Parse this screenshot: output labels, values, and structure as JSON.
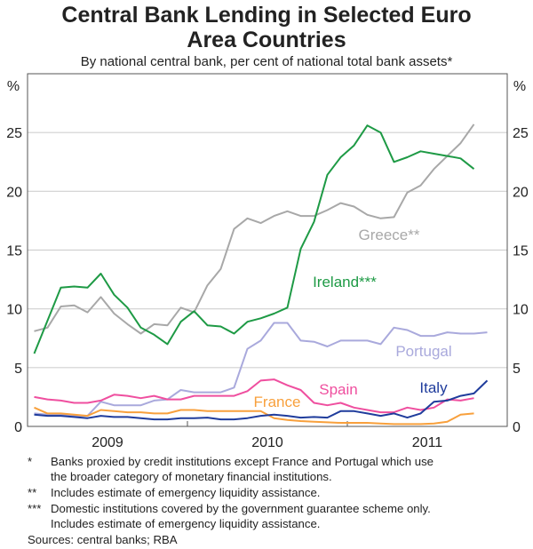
{
  "chart_data": {
    "type": "line",
    "title": "Central Bank Lending in Selected Euro Area Countries",
    "title_lines": [
      "Central Bank Lending in Selected Euro",
      "Area Countries"
    ],
    "subtitle": "By national central bank, per cent of national total bank assets*",
    "ylabel_left": "%",
    "ylabel_right": "%",
    "ylim": [
      0,
      30
    ],
    "yticks": [
      0,
      5,
      10,
      15,
      20,
      25
    ],
    "xlim": [
      "2009-01",
      "2012-01"
    ],
    "xtick_labels": [
      "2009",
      "2010",
      "2011"
    ],
    "x_start": "2009-01",
    "x_frequency": "monthly",
    "grid": true,
    "colors": {
      "Ireland***": "#1e9a45",
      "Greece**": "#a8a8a8",
      "Portugal": "#a9a9dc",
      "Spain": "#ef4f9f",
      "France": "#f8a03c",
      "Italy": "#1f3c9c"
    },
    "series": [
      {
        "name": "Greece**",
        "values": [
          8.1,
          8.4,
          10.2,
          10.3,
          9.7,
          11.0,
          9.6,
          8.7,
          7.9,
          8.7,
          8.6,
          10.1,
          9.7,
          12.0,
          13.4,
          16.8,
          17.7,
          17.3,
          17.9,
          18.3,
          17.9,
          17.9,
          18.4,
          19.0,
          18.7,
          18.0,
          17.7,
          17.8,
          19.9,
          20.5,
          21.9,
          23.0,
          24.1,
          25.7
        ]
      },
      {
        "name": "Ireland***",
        "values": [
          6.2,
          9.0,
          11.8,
          11.9,
          11.8,
          13.0,
          11.2,
          10.1,
          8.4,
          7.8,
          7.0,
          8.9,
          9.8,
          8.6,
          8.5,
          7.9,
          8.9,
          9.2,
          9.6,
          10.1,
          15.1,
          17.4,
          21.4,
          22.9,
          23.9,
          25.6,
          25.0,
          22.5,
          22.9,
          23.4,
          23.2,
          23.0,
          22.8,
          21.9
        ]
      },
      {
        "name": "Portugal",
        "values": [
          1.1,
          1.0,
          1.0,
          0.9,
          0.9,
          2.1,
          1.8,
          1.8,
          1.8,
          2.2,
          2.3,
          3.1,
          2.9,
          2.9,
          2.9,
          3.3,
          6.6,
          7.3,
          8.8,
          8.8,
          7.3,
          7.2,
          6.8,
          7.3,
          7.3,
          7.3,
          7.0,
          8.4,
          8.2,
          7.7,
          7.7,
          8.0,
          7.9,
          7.9,
          8.0
        ]
      },
      {
        "name": "Spain",
        "values": [
          2.5,
          2.3,
          2.2,
          2.0,
          2.0,
          2.2,
          2.7,
          2.6,
          2.4,
          2.6,
          2.3,
          2.3,
          2.6,
          2.6,
          2.6,
          2.6,
          3.0,
          3.9,
          4.0,
          3.5,
          3.1,
          2.0,
          1.8,
          2.0,
          1.6,
          1.4,
          1.2,
          1.2,
          1.6,
          1.4,
          1.6,
          2.3,
          2.2,
          2.4
        ]
      },
      {
        "name": "France",
        "values": [
          1.6,
          1.1,
          1.1,
          1.0,
          0.9,
          1.4,
          1.3,
          1.2,
          1.2,
          1.1,
          1.1,
          1.4,
          1.4,
          1.3,
          1.3,
          1.3,
          1.3,
          1.3,
          0.7,
          0.55,
          0.45,
          0.4,
          0.35,
          0.3,
          0.3,
          0.3,
          0.25,
          0.2,
          0.2,
          0.2,
          0.25,
          0.4,
          1.0,
          1.1
        ]
      },
      {
        "name": "Italy",
        "values": [
          1.0,
          0.9,
          0.9,
          0.8,
          0.7,
          0.9,
          0.8,
          0.8,
          0.7,
          0.6,
          0.6,
          0.7,
          0.7,
          0.75,
          0.6,
          0.6,
          0.7,
          0.9,
          1.0,
          0.9,
          0.75,
          0.8,
          0.75,
          1.3,
          1.3,
          1.1,
          0.9,
          1.1,
          0.75,
          1.1,
          2.1,
          2.2,
          2.6,
          2.8,
          3.9
        ]
      }
    ]
  },
  "footnotes": [
    {
      "marker": "*",
      "lines": [
        "Banks proxied by credit institutions except France and Portugal which use",
        "the broader category of monetary financial institutions."
      ]
    },
    {
      "marker": "**",
      "lines": [
        "Includes estimate of emergency liquidity assistance."
      ]
    },
    {
      "marker": "***",
      "lines": [
        "Domestic institutions covered by the government guarantee scheme only.",
        "Includes estimate of emergency liquidity assistance."
      ]
    }
  ],
  "sources": "Sources: central banks; RBA"
}
